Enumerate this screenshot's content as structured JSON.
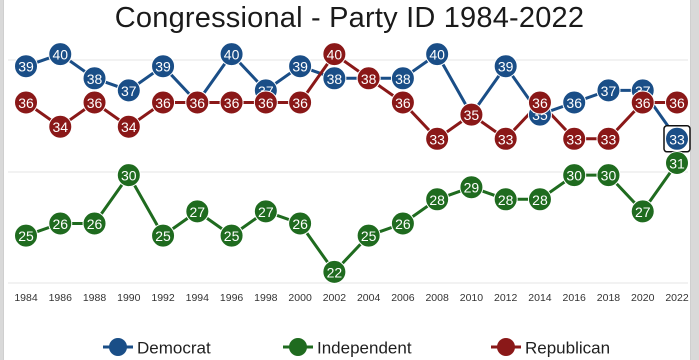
{
  "chart_data": {
    "type": "line",
    "title": "Congressional - Party ID 1984-2022",
    "categories": [
      "1984",
      "1986",
      "1988",
      "1990",
      "1992",
      "1994",
      "1996",
      "1998",
      "2000",
      "2002",
      "2004",
      "2006",
      "2008",
      "2010",
      "2012",
      "2014",
      "2016",
      "2018",
      "2020",
      "2022"
    ],
    "series": [
      {
        "name": "Democrat",
        "color": "#1a4e87",
        "values": [
          39,
          40,
          38,
          37,
          39,
          36,
          40,
          37,
          39,
          38,
          38,
          38,
          40,
          35,
          39,
          35,
          36,
          37,
          37,
          33
        ]
      },
      {
        "name": "Independent",
        "color": "#1f6b1f",
        "values": [
          25,
          26,
          26,
          30,
          25,
          27,
          25,
          27,
          26,
          22,
          25,
          26,
          28,
          29,
          28,
          28,
          30,
          30,
          27,
          31
        ]
      },
      {
        "name": "Republican",
        "color": "#8a1818",
        "values": [
          36,
          34,
          36,
          34,
          36,
          36,
          36,
          36,
          36,
          40,
          38,
          36,
          33,
          35,
          33,
          36,
          33,
          33,
          36,
          36
        ]
      }
    ],
    "xlabel": "",
    "ylabel": "",
    "ylim": [
      21,
      41
    ],
    "grid": true,
    "legend_position": "bottom",
    "highlight": {
      "series": "Democrat",
      "category": "2022"
    }
  }
}
